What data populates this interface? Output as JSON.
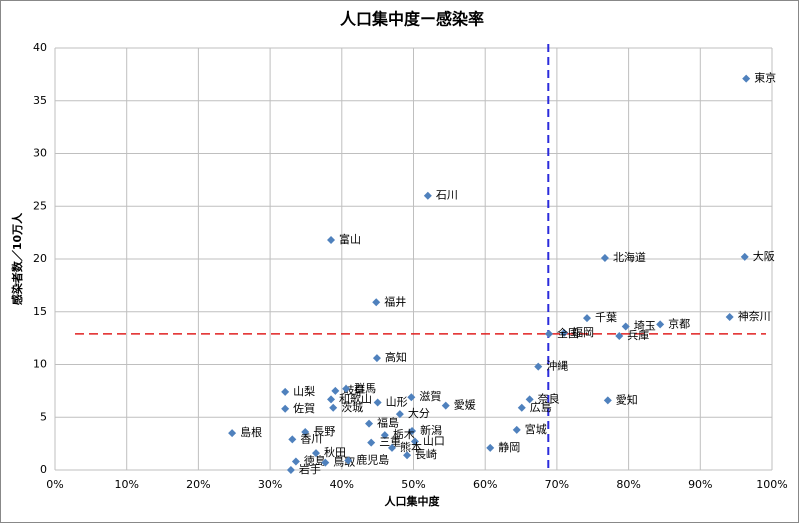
{
  "chart_data": {
    "type": "scatter",
    "title": "人口集中度ー感染率",
    "x_label": "人口集中度",
    "y_label": "感染者数／10万人",
    "color": "#4f81bd",
    "grid": true,
    "ref_x": 68.8,
    "ref_x_color": "#2b2bdb",
    "ref_y": 12.9,
    "ref_y_color": "#e02020",
    "xlim": [
      0,
      100
    ],
    "ylim": [
      0,
      40
    ],
    "xticks": [
      {
        "value": 0,
        "label": "0%"
      },
      {
        "value": 10,
        "label": "10%"
      },
      {
        "value": 20,
        "label": "20%"
      },
      {
        "value": 30,
        "label": "30%"
      },
      {
        "value": 40,
        "label": "40%"
      },
      {
        "value": 50,
        "label": "50%"
      },
      {
        "value": 60,
        "label": "60%"
      },
      {
        "value": 70,
        "label": "70%"
      },
      {
        "value": 80,
        "label": "80%"
      },
      {
        "value": 90,
        "label": "90%"
      },
      {
        "value": 100,
        "label": "100%"
      }
    ],
    "yticks": [
      0,
      5,
      10,
      15,
      20,
      25,
      30,
      35,
      40
    ],
    "points": [
      {
        "label": "東京",
        "x": 96.4,
        "y": 37.1
      },
      {
        "label": "石川",
        "x": 52.0,
        "y": 26.0
      },
      {
        "label": "富山",
        "x": 38.5,
        "y": 21.8
      },
      {
        "label": "北海道",
        "x": 76.7,
        "y": 20.1
      },
      {
        "label": "大阪",
        "x": 96.2,
        "y": 20.2
      },
      {
        "label": "福井",
        "x": 44.8,
        "y": 15.9
      },
      {
        "label": "千葉",
        "x": 74.2,
        "y": 14.4
      },
      {
        "label": "神奈川",
        "x": 94.1,
        "y": 14.5
      },
      {
        "label": "京都",
        "x": 84.4,
        "y": 13.8
      },
      {
        "label": "埼玉",
        "x": 79.6,
        "y": 13.6
      },
      {
        "label": "兵庫",
        "x": 78.7,
        "y": 12.7
      },
      {
        "label": "福岡",
        "x": 71.0,
        "y": 13.0
      },
      {
        "label": "全国",
        "x": 68.9,
        "y": 12.9
      },
      {
        "label": "高知",
        "x": 44.9,
        "y": 10.6
      },
      {
        "label": "沖縄",
        "x": 67.4,
        "y": 9.8
      },
      {
        "label": "山梨",
        "x": 32.1,
        "y": 7.4
      },
      {
        "label": "岐阜",
        "x": 39.1,
        "y": 7.5
      },
      {
        "label": "群馬",
        "x": 40.6,
        "y": 7.7
      },
      {
        "label": "和歌山",
        "x": 38.5,
        "y": 6.7
      },
      {
        "label": "茨城",
        "x": 38.8,
        "y": 5.9
      },
      {
        "label": "山形",
        "x": 45.0,
        "y": 6.4
      },
      {
        "label": "滋賀",
        "x": 49.7,
        "y": 6.9
      },
      {
        "label": "愛媛",
        "x": 54.5,
        "y": 6.1
      },
      {
        "label": "奈良",
        "x": 66.2,
        "y": 6.7
      },
      {
        "label": "広島",
        "x": 65.1,
        "y": 5.9
      },
      {
        "label": "愛知",
        "x": 77.1,
        "y": 6.6
      },
      {
        "label": "佐賀",
        "x": 32.1,
        "y": 5.8
      },
      {
        "label": "大分",
        "x": 48.1,
        "y": 5.3
      },
      {
        "label": "福島",
        "x": 43.8,
        "y": 4.4
      },
      {
        "label": "宮城",
        "x": 64.4,
        "y": 3.8
      },
      {
        "label": "島根",
        "x": 24.7,
        "y": 3.5
      },
      {
        "label": "長野",
        "x": 34.9,
        "y": 3.6
      },
      {
        "label": "香川",
        "x": 33.1,
        "y": 2.9
      },
      {
        "label": "新潟",
        "x": 49.8,
        "y": 3.7
      },
      {
        "label": "栃木",
        "x": 46.0,
        "y": 3.3
      },
      {
        "label": "三重",
        "x": 44.1,
        "y": 2.6
      },
      {
        "label": "山口",
        "x": 50.2,
        "y": 2.7
      },
      {
        "label": "静岡",
        "x": 60.7,
        "y": 2.1
      },
      {
        "label": "秋田",
        "x": 36.4,
        "y": 1.6
      },
      {
        "label": "熊本",
        "x": 47.0,
        "y": 2.1
      },
      {
        "label": "長崎",
        "x": 49.1,
        "y": 1.4
      },
      {
        "label": "徳島",
        "x": 33.6,
        "y": 0.8
      },
      {
        "label": "鳥取",
        "x": 37.7,
        "y": 0.7
      },
      {
        "label": "鹿児島",
        "x": 40.9,
        "y": 0.9
      },
      {
        "label": "岩手",
        "x": 32.9,
        "y": 0.0
      }
    ]
  }
}
